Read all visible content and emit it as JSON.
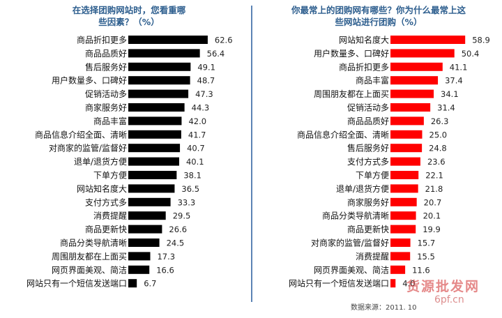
{
  "chart_data": [
    {
      "type": "bar",
      "orientation": "horizontal",
      "title": "在选择团购网站时，您看重哪些因素？（%）",
      "categories": [
        "商品折扣更多",
        "商品品质好",
        "售后服务好",
        "用户数量多、口碑好",
        "促销活动多",
        "商家服务好",
        "商品丰富",
        "商品信息介绍全面、清晰",
        "对商家的监管/监督好",
        "退单/退货方便",
        "下单方便",
        "网站知名度大",
        "支付方式多",
        "消费提醒",
        "商品更新快",
        "商品分类导航清晰",
        "周围朋友都在上面买",
        "网页界面美观、简洁",
        "网站只有一个短信发送端口"
      ],
      "values": [
        62.6,
        56.4,
        49.1,
        48.7,
        47.3,
        44.3,
        42.0,
        41.7,
        40.7,
        40.1,
        38.1,
        36.5,
        33.3,
        29.5,
        26.6,
        24.5,
        17.3,
        16.6,
        6.7
      ],
      "value_labels": [
        "62.6",
        "56.4",
        "49.1",
        "48.7",
        "47.3",
        "44.3",
        "42.0",
        "41.7",
        "40.7",
        "40.1",
        "38.1",
        "36.5",
        "33.3",
        "29.5",
        "26.6",
        "24.5",
        "17.3",
        "16.6",
        "6.7"
      ],
      "bar_color": "#000000",
      "grid": false
    },
    {
      "type": "bar",
      "orientation": "horizontal",
      "title": "你最常上的团购网有哪些？你为什么最常上这些网站进行团购（%）",
      "categories": [
        "网站知名度大",
        "用户数量多、口碑好",
        "商品折扣更多",
        "商品丰富",
        "周围朋友都在上面买",
        "促销活动多",
        "商品品质好",
        "商品信息介绍全面、清晰",
        "售后服务好",
        "支付方式多",
        "下单方便",
        "退单/退货方便",
        "商家服务好",
        "商品分类导航清晰",
        "商品更新快",
        "对商家的监管/监督好",
        "消费提醒",
        "网页界面美观、简洁",
        "网站只有一个短信发送端口"
      ],
      "values": [
        58.9,
        50.4,
        41.1,
        37.4,
        34.1,
        31.4,
        26.3,
        25.0,
        24.8,
        23.6,
        22.1,
        21.8,
        20.7,
        20.1,
        19.9,
        15.7,
        15.5,
        11.6,
        4.0
      ],
      "value_labels": [
        "58.9",
        "50.4",
        "41.1",
        "37.4",
        "34.1",
        "31.4",
        "26.3",
        "25.0",
        "24.8",
        "23.6",
        "22.1",
        "21.8",
        "20.7",
        "20.1",
        "19.9",
        "15.7",
        "15.5",
        "11.6",
        "4.0"
      ],
      "bar_color": "#ff0000",
      "grid": false
    }
  ],
  "header": {
    "left_title_line1": "在选择团购网站时，您看重哪",
    "left_title_line2": "些因素？（%）",
    "right_title_line1": "你最常上的团购网有哪些？你为什么最常上这",
    "right_title_line2": "些网站进行团购（%）"
  },
  "footer": {
    "source": "数据来源：2011. 10",
    "watermark_brand": "货源批发网",
    "watermark_url": "6pf.cn"
  },
  "colors": {
    "title": "#2d5e8e",
    "divider": "#5b83b5",
    "left_bar": "#000000",
    "right_bar": "#ff0000"
  }
}
